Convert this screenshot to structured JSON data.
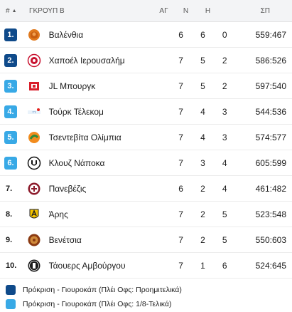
{
  "header": {
    "pos": "#",
    "sort_icon": "sort-arrow-up",
    "team": "ΓΚΡΟΥΠ Β",
    "played": "ΑΓ",
    "wins": "Ν",
    "losses": "Η",
    "points": "ΣΠ"
  },
  "colors": {
    "dark": "#0f4a8a",
    "light": "#38a9e6"
  },
  "rows": [
    {
      "pos": "1.",
      "team": "Βαλένθια",
      "ag": "6",
      "n": "6",
      "h": "0",
      "sp": "559:467",
      "badge": "dark",
      "logo": "valencia-logo"
    },
    {
      "pos": "2.",
      "team": "Χαποέλ Ιερουσαλήμ",
      "ag": "7",
      "n": "5",
      "h": "2",
      "sp": "586:526",
      "badge": "dark",
      "logo": "hapoel-logo"
    },
    {
      "pos": "3.",
      "team": "JL Μπουργκ",
      "ag": "7",
      "n": "5",
      "h": "2",
      "sp": "597:540",
      "badge": "light",
      "logo": "bourg-logo"
    },
    {
      "pos": "4.",
      "team": "Τούρκ Τέλεκομ",
      "ag": "7",
      "n": "4",
      "h": "3",
      "sp": "544:536",
      "badge": "light",
      "logo": "turk-telekom-logo"
    },
    {
      "pos": "5.",
      "team": "Τσεντεβίτα Ολίμπια",
      "ag": "7",
      "n": "4",
      "h": "3",
      "sp": "574:577",
      "badge": "light",
      "logo": "cedevita-logo"
    },
    {
      "pos": "6.",
      "team": "Κλουζ Νάποκα",
      "ag": "7",
      "n": "3",
      "h": "4",
      "sp": "605:599",
      "badge": "light",
      "logo": "cluj-logo"
    },
    {
      "pos": "7.",
      "team": "Πανεβέζις",
      "ag": "6",
      "n": "2",
      "h": "4",
      "sp": "461:482",
      "badge": "none",
      "logo": "panevezys-logo"
    },
    {
      "pos": "8.",
      "team": "Άρης",
      "ag": "7",
      "n": "2",
      "h": "5",
      "sp": "523:548",
      "badge": "none",
      "logo": "aris-logo"
    },
    {
      "pos": "9.",
      "team": "Βενέτσια",
      "ag": "7",
      "n": "2",
      "h": "5",
      "sp": "550:603",
      "badge": "none",
      "logo": "venezia-logo"
    },
    {
      "pos": "10.",
      "team": "Τάουερς Αμβούργου",
      "ag": "7",
      "n": "1",
      "h": "6",
      "sp": "524:645",
      "badge": "none",
      "logo": "towers-logo"
    }
  ],
  "legend": [
    {
      "label": "Πρόκριση - Γιουροκάπ (Πλέι Οφς: Προημιτελικά)",
      "color": "dark"
    },
    {
      "label": "Πρόκριση - Γιουροκάπ (Πλέι Οφς: 1/8-Τελικά)",
      "color": "light"
    }
  ]
}
